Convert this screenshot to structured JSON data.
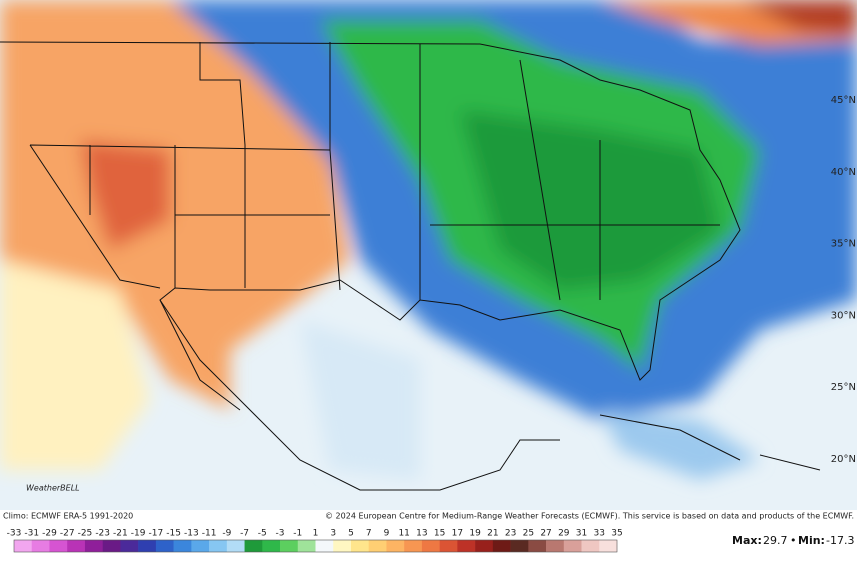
{
  "map": {
    "lat_labels": [
      "45°N",
      "40°N",
      "35°N",
      "30°N",
      "25°N",
      "20°N"
    ],
    "logo": "WeatherBELL",
    "climo": "Climo: ECMWF ERA-5 1991-2020",
    "copyright": "© 2024 European Centre for Medium-Range Weather Forecasts (ECMWF). This service is based on data and products of the ECMWF.",
    "colorbar": {
      "ticks": [
        -33,
        -31,
        -29,
        -27,
        -25,
        -23,
        -21,
        -19,
        -17,
        -15,
        -13,
        -11,
        -9,
        -7,
        -5,
        -3,
        -1,
        1,
        3,
        5,
        7,
        9,
        11,
        13,
        15,
        17,
        19,
        21,
        23,
        25,
        27,
        29,
        31,
        33,
        35
      ],
      "colors": [
        "#f2a6ef",
        "#e77ce3",
        "#d654d2",
        "#b933b6",
        "#8f1f9a",
        "#6a1a86",
        "#4b2a9a",
        "#2f3fb0",
        "#2e62c9",
        "#3b86dc",
        "#5aa8ea",
        "#86c6f2",
        "#b2dcf6",
        "#1f9a3a",
        "#2fb84a",
        "#5ccf5f",
        "#9fe39a",
        "#f4f8fb",
        "#fff7c2",
        "#ffe58c",
        "#ffcf73",
        "#fdb463",
        "#f79652",
        "#ee7843",
        "#db5434",
        "#bd3227",
        "#98201c",
        "#6e1a16",
        "#5a2a22",
        "#8a4b43",
        "#b97870",
        "#d9a09a",
        "#efc7c2",
        "#f8e0dd"
      ]
    },
    "stats": {
      "max_label": "Max:",
      "max": 29.7,
      "separator": "•",
      "min_label": "Min:",
      "min": -17.3
    }
  }
}
